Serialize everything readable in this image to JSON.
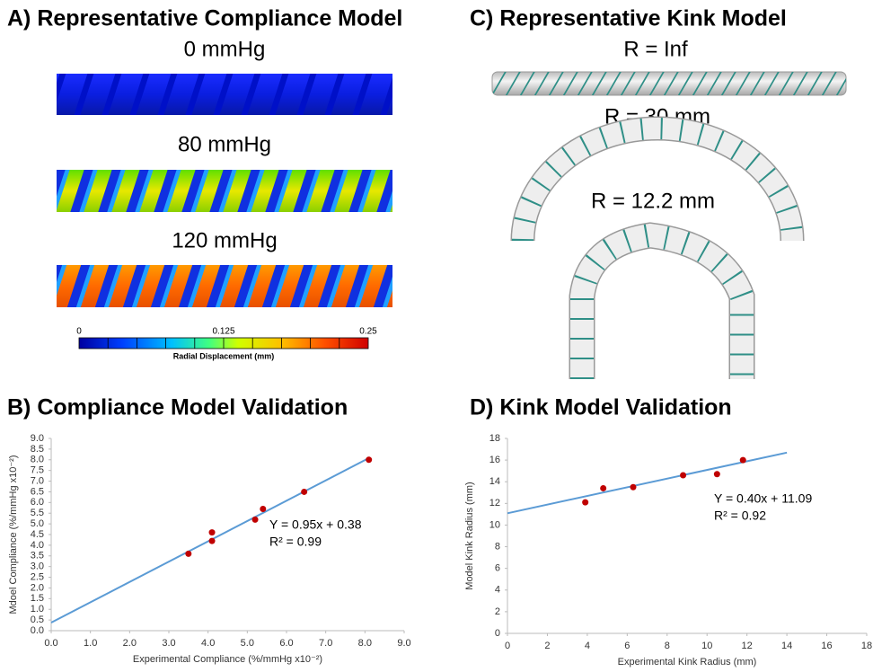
{
  "panel_a": {
    "title": "A) Representative Compliance Model",
    "labels": [
      "0 mmHg",
      "80 mmHg",
      "120 mmHg"
    ],
    "colorbar": {
      "ticks": [
        0,
        0.125,
        0.25
      ],
      "label": "Radial Displacement (mm)"
    }
  },
  "panel_c": {
    "title": "C) Representative Kink Model",
    "labels": [
      "R = Inf",
      "R = 30 mm",
      "R = 12.2 mm"
    ]
  },
  "chart_data": [
    {
      "type": "scatter",
      "title": "B) Compliance Model Validation",
      "x_label": "Experimental Compliance (%/mmHg x10⁻²)",
      "y_label": "Mdoel Compliance (%/mmHg x10⁻²)",
      "xlim": [
        0,
        9
      ],
      "ylim": [
        0,
        9
      ],
      "xticks": [
        {
          "value": 0,
          "label": "0.0"
        },
        {
          "value": 1,
          "label": "1.0"
        },
        {
          "value": 2,
          "label": "2.0"
        },
        {
          "value": 3,
          "label": "3.0"
        },
        {
          "value": 4,
          "label": "4.0"
        },
        {
          "value": 5,
          "label": "5.0"
        },
        {
          "value": 6,
          "label": "6.0"
        },
        {
          "value": 7,
          "label": "7.0"
        },
        {
          "value": 8,
          "label": "8.0"
        },
        {
          "value": 9,
          "label": "9.0"
        }
      ],
      "yticks": [
        {
          "value": 0,
          "label": "0.0"
        },
        {
          "value": 0.5,
          "label": "0.5"
        },
        {
          "value": 1,
          "label": "1.0"
        },
        {
          "value": 1.5,
          "label": "1.5"
        },
        {
          "value": 2,
          "label": "2.0"
        },
        {
          "value": 2.5,
          "label": "2.5"
        },
        {
          "value": 3,
          "label": "3.0"
        },
        {
          "value": 3.5,
          "label": "3.5"
        },
        {
          "value": 4,
          "label": "4.0"
        },
        {
          "value": 4.5,
          "label": "4.5"
        },
        {
          "value": 5,
          "label": "5.0"
        },
        {
          "value": 5.5,
          "label": "5.5"
        },
        {
          "value": 6,
          "label": "6.0"
        },
        {
          "value": 6.5,
          "label": "6.5"
        },
        {
          "value": 7,
          "label": "7.0"
        },
        {
          "value": 7.5,
          "label": "7.5"
        },
        {
          "value": 8,
          "label": "8.0"
        },
        {
          "value": 8.5,
          "label": "8.5"
        },
        {
          "value": 9,
          "label": "9.0"
        }
      ],
      "series": [
        {
          "color": "#c00000",
          "x": [
            3.5,
            4.1,
            4.1,
            5.2,
            5.4,
            6.45,
            8.1
          ],
          "values": [
            3.6,
            4.6,
            4.2,
            5.2,
            5.7,
            6.5,
            8.0
          ]
        }
      ],
      "trendline": {
        "color": "#5b9bd5",
        "x": [
          0,
          8.1
        ],
        "values": [
          0.38,
          8.08
        ]
      },
      "annotations": [
        "Y = 0.95x + 0.38",
        "R² = 0.99"
      ]
    },
    {
      "type": "scatter",
      "title": "D) Kink Model Validation",
      "x_label": "Experimental Kink Radius (mm)",
      "y_label": "Model Kink Radius (mm)",
      "xlim": [
        0,
        18
      ],
      "ylim": [
        0,
        18
      ],
      "xticks": [
        0,
        2,
        4,
        6,
        8,
        10,
        12,
        14,
        16,
        18
      ],
      "yticks": [
        0,
        2,
        4,
        6,
        8,
        10,
        12,
        14,
        16,
        18
      ],
      "series": [
        {
          "color": "#c00000",
          "x": [
            3.9,
            4.8,
            6.3,
            8.8,
            10.5,
            11.8
          ],
          "values": [
            12.1,
            13.4,
            13.5,
            14.6,
            14.7,
            16.0
          ]
        }
      ],
      "trendline": {
        "color": "#5b9bd5",
        "x": [
          0,
          14
        ],
        "values": [
          11.09,
          16.69
        ]
      },
      "annotations": [
        "Y = 0.40x + 11.09",
        "R² = 0.92"
      ]
    }
  ]
}
